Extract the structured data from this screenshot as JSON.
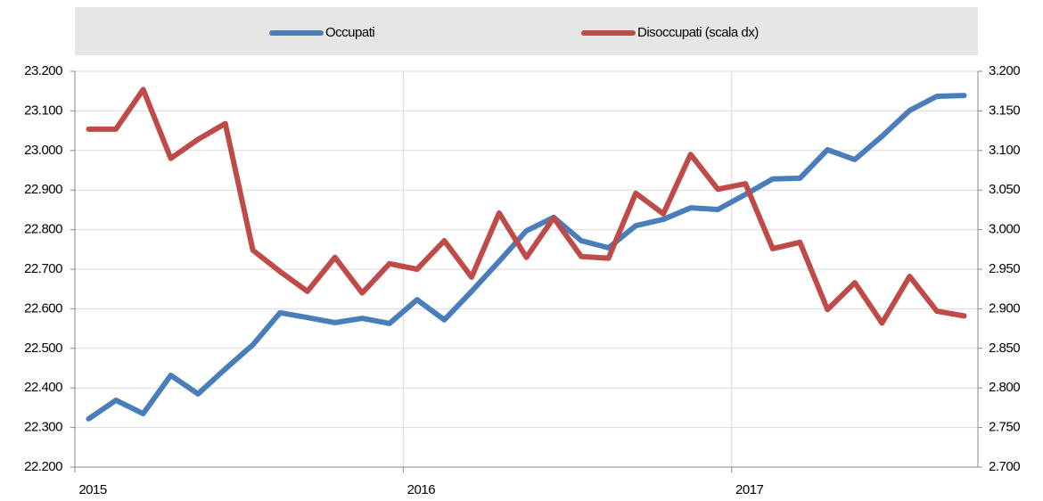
{
  "chart_data": {
    "type": "line",
    "x": [
      2015.042,
      2015.125,
      2015.208,
      2015.292,
      2015.375,
      2015.458,
      2015.542,
      2015.625,
      2015.708,
      2015.792,
      2015.875,
      2015.958,
      2016.042,
      2016.125,
      2016.208,
      2016.292,
      2016.375,
      2016.458,
      2016.542,
      2016.625,
      2016.708,
      2016.792,
      2016.875,
      2016.958,
      2017.042,
      2017.125,
      2017.208,
      2017.292,
      2017.375,
      2017.458,
      2017.542,
      2017.625,
      2017.708
    ],
    "xlim": [
      2015,
      2017.75
    ],
    "xticks": [
      2015,
      2016,
      2017
    ],
    "ylim": [
      22200,
      23200
    ],
    "yticks": [
      {
        "value": 22200,
        "label": "22.200"
      },
      {
        "value": 22300,
        "label": "22.300"
      },
      {
        "value": 22400,
        "label": "22.400"
      },
      {
        "value": 22500,
        "label": "22.500"
      },
      {
        "value": 22600,
        "label": "22.600"
      },
      {
        "value": 22700,
        "label": "22.700"
      },
      {
        "value": 22800,
        "label": "22.800"
      },
      {
        "value": 22900,
        "label": "22.900"
      },
      {
        "value": 23000,
        "label": "23.000"
      },
      {
        "value": 23100,
        "label": "23.100"
      },
      {
        "value": 23200,
        "label": "23.200"
      }
    ],
    "y2lim": [
      2700,
      3200
    ],
    "y2ticks": [
      {
        "value": 2700,
        "label": "2.700"
      },
      {
        "value": 2750,
        "label": "2.750"
      },
      {
        "value": 2800,
        "label": "2.800"
      },
      {
        "value": 2850,
        "label": "2.850"
      },
      {
        "value": 2900,
        "label": "2.900"
      },
      {
        "value": 2950,
        "label": "2.950"
      },
      {
        "value": 3000,
        "label": "3.000"
      },
      {
        "value": 3050,
        "label": "3.050"
      },
      {
        "value": 3100,
        "label": "3.100"
      },
      {
        "value": 3150,
        "label": "3.150"
      },
      {
        "value": 3200,
        "label": "3.200"
      }
    ],
    "grid": true,
    "legend": "top",
    "series": [
      {
        "name": "Occupati",
        "color": "#4a7ebb",
        "values": [
          22322,
          22369,
          22335,
          22432,
          22385,
          22448,
          22509,
          22590,
          22578,
          22565,
          22576,
          22563,
          22623,
          22572,
          22644,
          22720,
          22797,
          22831,
          22772,
          22754,
          22810,
          22826,
          22855,
          22851,
          22889,
          22928,
          22930,
          23002,
          22977,
          23036,
          23101,
          23137,
          23139
        ]
      },
      {
        "name": "Disoccupati (scala dx)",
        "color": "#be4b48",
        "axis": "y2",
        "values": [
          3127,
          3127,
          3177,
          3090,
          3114,
          3134,
          2974,
          2947,
          2922,
          2965,
          2920,
          2957,
          2950,
          2986,
          2940,
          3021,
          2965,
          3015,
          2966,
          2964,
          3046,
          3020,
          3095,
          3051,
          3058,
          2976,
          2984,
          2899,
          2933,
          2882,
          2941,
          2897,
          2891
        ]
      }
    ]
  }
}
